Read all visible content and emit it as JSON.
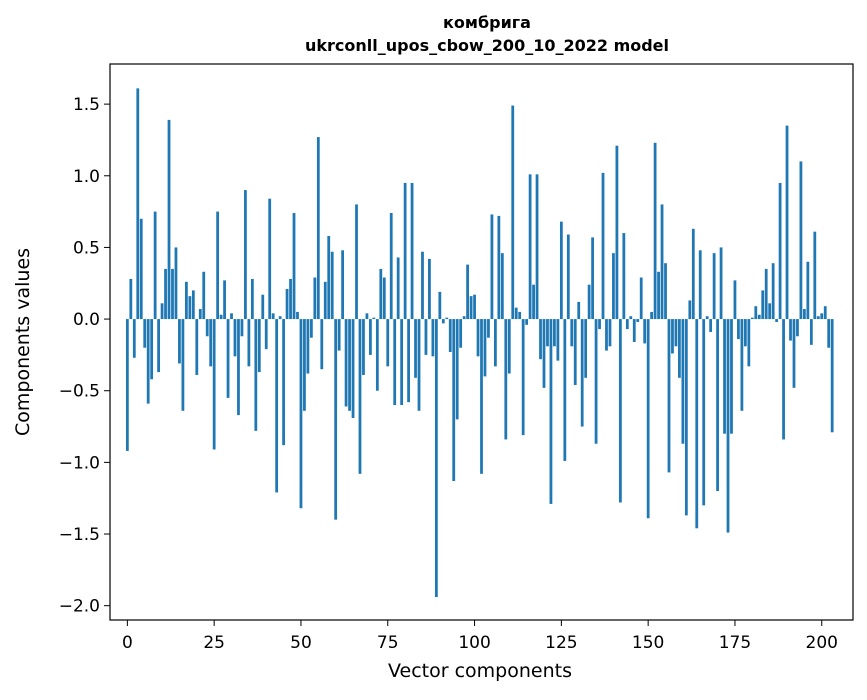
{
  "chart_data": {
    "type": "bar",
    "title_line1": "комбрига",
    "title_line2": "ukrconll_upos_cbow_200_10_2022 model",
    "xlabel": "Vector components",
    "ylabel": "Components values",
    "xlim": [
      -5,
      209
    ],
    "ylim": [
      -2.1,
      1.78
    ],
    "xticks": [
      0,
      25,
      50,
      75,
      100,
      125,
      150,
      175,
      200
    ],
    "yticks": [
      -2.0,
      -1.5,
      -1.0,
      -0.5,
      0.0,
      0.5,
      1.0,
      1.5
    ],
    "ytick_labels": [
      "−2.0",
      "−1.5",
      "−1.0",
      "−0.5",
      "0.0",
      "0.5",
      "1.0",
      "1.5"
    ],
    "bar_color": "#1f77b4",
    "grid": false,
    "values": [
      -0.92,
      0.28,
      -0.27,
      1.61,
      0.7,
      -0.2,
      -0.59,
      -0.42,
      0.75,
      -0.37,
      0.11,
      0.35,
      1.39,
      0.35,
      0.5,
      -0.31,
      -0.64,
      0.26,
      0.16,
      0.2,
      -0.39,
      0.07,
      0.33,
      -0.12,
      -0.33,
      -0.91,
      0.75,
      0.03,
      0.27,
      -0.55,
      0.04,
      -0.26,
      -0.67,
      -0.12,
      0.9,
      -0.33,
      0.28,
      -0.78,
      -0.37,
      0.17,
      -0.21,
      0.84,
      0.04,
      -1.21,
      0.02,
      -0.88,
      0.21,
      0.28,
      0.74,
      0.05,
      -1.32,
      -0.64,
      -0.38,
      -0.13,
      0.29,
      1.27,
      -0.35,
      0.26,
      0.58,
      0.47,
      -1.4,
      -0.22,
      0.48,
      -0.61,
      -0.64,
      -0.69,
      0.8,
      -1.08,
      -0.39,
      0.04,
      -0.25,
      0.01,
      -0.5,
      0.35,
      0.29,
      -0.33,
      0.74,
      -0.6,
      0.43,
      -0.6,
      0.95,
      -0.58,
      0.95,
      -0.41,
      -0.64,
      0.47,
      -0.25,
      0.42,
      -0.26,
      -1.94,
      0.19,
      -0.03,
      0.01,
      -0.23,
      -1.13,
      -0.7,
      -0.2,
      0.02,
      0.38,
      0.16,
      0.17,
      -0.26,
      -1.08,
      -0.4,
      -0.13,
      0.73,
      -0.33,
      0.72,
      0.46,
      -0.84,
      -0.38,
      1.49,
      0.08,
      0.05,
      -0.81,
      -0.04,
      1.01,
      0.24,
      1.01,
      -0.28,
      -0.48,
      -0.19,
      -1.29,
      -0.19,
      -0.29,
      0.68,
      -0.99,
      0.59,
      -0.19,
      -0.46,
      0.12,
      -0.75,
      -0.41,
      0.24,
      0.57,
      -0.87,
      -0.07,
      1.02,
      -0.22,
      -0.19,
      0.46,
      1.21,
      -1.28,
      0.6,
      -0.07,
      0.02,
      -0.16,
      -0.02,
      0.29,
      -0.17,
      -1.39,
      0.05,
      1.23,
      0.33,
      0.8,
      0.39,
      -1.07,
      -0.24,
      -0.19,
      -0.41,
      -0.87,
      -1.37,
      0.13,
      0.63,
      -1.46,
      0.48,
      -1.3,
      0.02,
      -0.09,
      0.46,
      -1.2,
      0.5,
      -0.8,
      -1.49,
      -0.8,
      0.27,
      -0.14,
      -0.64,
      -0.19,
      -0.33,
      0.01,
      0.09,
      0.03,
      0.2,
      0.35,
      0.11,
      0.39,
      -0.02,
      0.95,
      -0.84,
      1.35,
      -0.15,
      -0.48,
      -0.12,
      1.1,
      0.07,
      0.4,
      -0.18,
      0.61,
      0.02,
      0.04,
      0.09,
      -0.2,
      -0.79
    ]
  }
}
